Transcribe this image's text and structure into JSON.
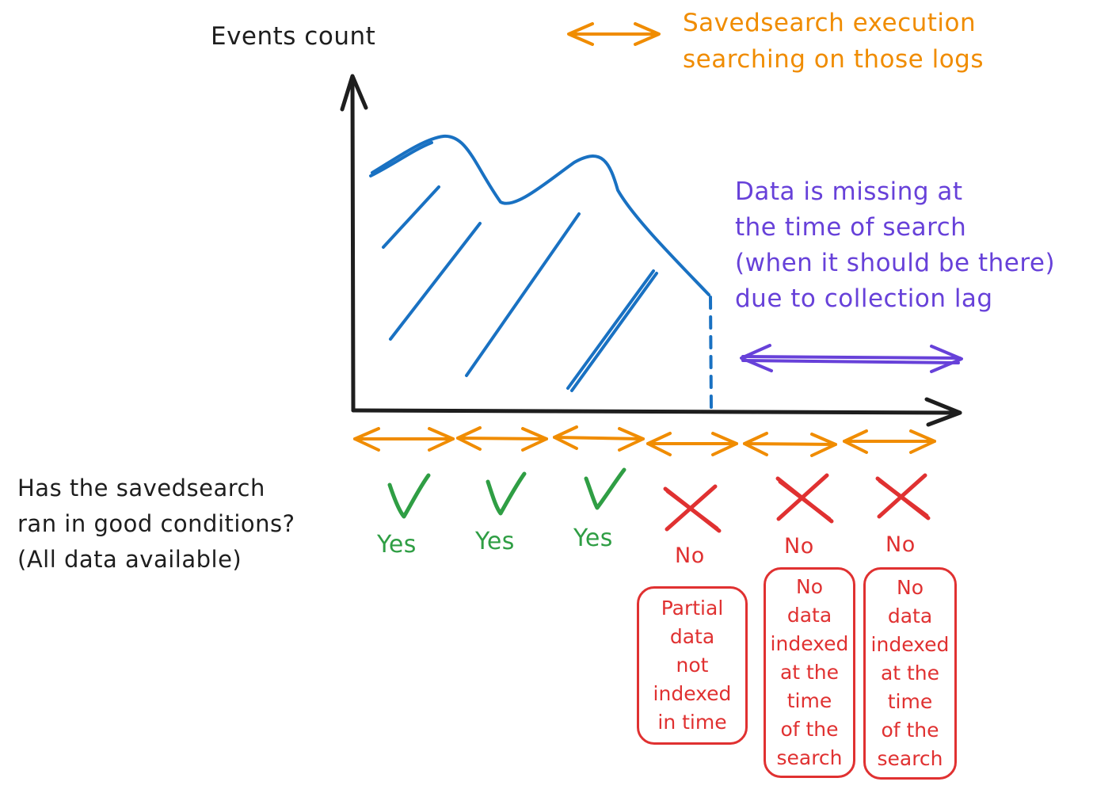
{
  "axis": {
    "y_label": "Events count"
  },
  "legend": {
    "execution_lines": [
      "Savedsearch execution",
      "searching on those logs"
    ],
    "color": "#f08c00"
  },
  "missing_note": {
    "lines": [
      "Data is missing at",
      "the time of search",
      "(when it should be there)",
      "due to collection lag"
    ],
    "color": "#6741d9"
  },
  "question": {
    "lines": [
      "Has the savedsearch",
      "ran in good conditions?",
      "(All data available)"
    ]
  },
  "runs": [
    {
      "mark": "check",
      "answer": "Yes",
      "reason": []
    },
    {
      "mark": "check",
      "answer": "Yes",
      "reason": []
    },
    {
      "mark": "check",
      "answer": "Yes",
      "reason": []
    },
    {
      "mark": "cross",
      "answer": "No",
      "reason": [
        "Partial",
        "data",
        "not",
        "indexed",
        "in time"
      ]
    },
    {
      "mark": "cross",
      "answer": "No",
      "reason": [
        "No",
        "data",
        "indexed",
        "at the",
        "time",
        "of the",
        "search"
      ]
    },
    {
      "mark": "cross",
      "answer": "No",
      "reason": [
        "No",
        "data",
        "indexed",
        "at the",
        "time",
        "of the",
        "search"
      ]
    }
  ],
  "colors": {
    "curve": "#1971c2",
    "axis": "#1e1e1e",
    "yes": "#2f9e44",
    "no": "#e03131"
  }
}
